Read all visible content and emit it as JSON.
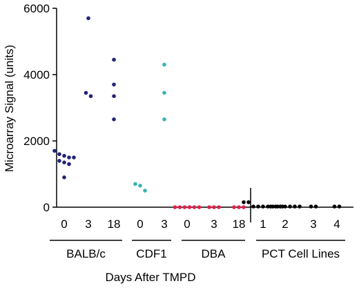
{
  "chart_data": {
    "type": "scatter",
    "title": "",
    "xlabel": "Days After TMPD",
    "ylabel": "Microarray Signal (units)",
    "ylim": [
      0,
      6000
    ],
    "yticks": [
      "0",
      "2000",
      "4000",
      "6000"
    ],
    "grid": false,
    "legend": "none",
    "groups": [
      {
        "name": "BALB/c",
        "color": "#23237a",
        "categories": [
          {
            "label": "0",
            "values": [
              1700,
              1600,
              1550,
              1500,
              1500,
              1400,
              1350,
              1300,
              900
            ]
          },
          {
            "label": "3",
            "values": [
              5700,
              3450,
              3350
            ]
          },
          {
            "label": "18",
            "values": [
              4450,
              3700,
              3350,
              2650
            ]
          }
        ]
      },
      {
        "name": "CDF1",
        "color": "#3bb3b3",
        "categories": [
          {
            "label": "0",
            "values": [
              700,
              650,
              500
            ]
          },
          {
            "label": "3",
            "values": [
              4300,
              3450,
              2650
            ]
          }
        ]
      },
      {
        "name": "DBA",
        "color": "#e0204a",
        "categories": [
          {
            "label": "0",
            "values": [
              0,
              0,
              0,
              0,
              0,
              0
            ]
          },
          {
            "label": "3",
            "values": [
              0,
              0,
              0
            ]
          },
          {
            "label": "18",
            "values": [
              0,
              0,
              0
            ]
          }
        ]
      },
      {
        "name": "PCT Cell Lines",
        "color": "#000000",
        "categories": [
          {
            "label": "1",
            "values": [
              150,
              150,
              20,
              20,
              20,
              20,
              20,
              20,
              20
            ]
          },
          {
            "label": "2",
            "values": [
              20,
              20,
              20,
              20,
              20,
              20,
              20
            ]
          },
          {
            "label": "3",
            "values": [
              20,
              20
            ]
          },
          {
            "label": "4",
            "values": [
              20,
              20
            ]
          }
        ]
      }
    ]
  }
}
